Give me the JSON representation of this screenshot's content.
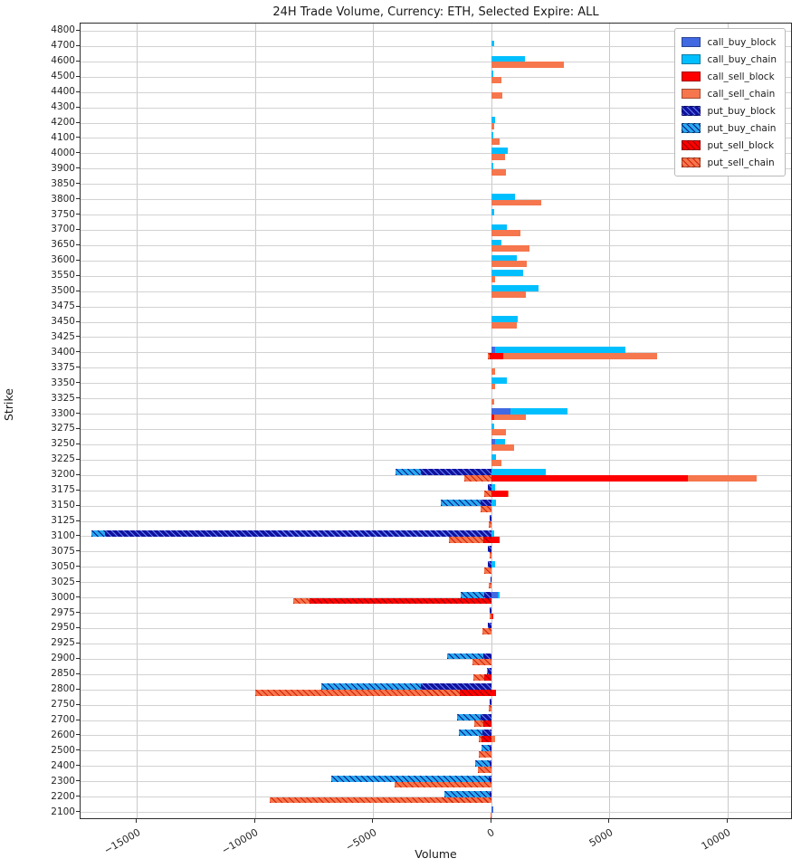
{
  "chart_data": {
    "type": "bar",
    "orientation": "horizontal",
    "title": "24H Trade Volume, Currency: ETH, Selected Expire: ALL",
    "xlabel": "Volume",
    "ylabel": "Strike",
    "grid": true,
    "legend_position": "upper right",
    "xlim": [
      -17400,
      12750
    ],
    "x_ticks": [
      -15000,
      -10000,
      -5000,
      0,
      5000,
      10000
    ],
    "x_tick_labels": [
      "−15000",
      "−10000",
      "−5000",
      "0",
      "5000",
      "10000"
    ],
    "categories": [
      "4800",
      "4700",
      "4600",
      "4500",
      "4400",
      "4300",
      "4200",
      "4100",
      "4000",
      "3900",
      "3850",
      "3800",
      "3750",
      "3700",
      "3650",
      "3600",
      "3550",
      "3500",
      "3475",
      "3450",
      "3425",
      "3400",
      "3375",
      "3350",
      "3325",
      "3300",
      "3275",
      "3250",
      "3225",
      "3200",
      "3175",
      "3150",
      "3125",
      "3100",
      "3075",
      "3050",
      "3025",
      "3000",
      "2975",
      "2950",
      "2925",
      "2900",
      "2850",
      "2800",
      "2750",
      "2700",
      "2600",
      "2500",
      "2400",
      "2300",
      "2200",
      "2100"
    ],
    "series": [
      {
        "name": "call_buy_block",
        "color": "#4169e1",
        "hatch": false,
        "subrow": "buy",
        "values": [
          0,
          0,
          0,
          0,
          0,
          0,
          0,
          0,
          0,
          0,
          0,
          0,
          0,
          0,
          0,
          0,
          0,
          0,
          0,
          0,
          0,
          150,
          0,
          0,
          0,
          800,
          0,
          150,
          0,
          0,
          0,
          0,
          0,
          0,
          0,
          0,
          0,
          250,
          0,
          0,
          0,
          0,
          0,
          0,
          0,
          0,
          0,
          0,
          0,
          0,
          0,
          60
        ]
      },
      {
        "name": "call_buy_chain",
        "color": "#00bfff",
        "hatch": false,
        "subrow": "buy",
        "values": [
          0,
          100,
          1400,
          80,
          0,
          0,
          140,
          80,
          700,
          80,
          0,
          1000,
          120,
          650,
          430,
          1050,
          1350,
          2000,
          0,
          1100,
          0,
          5650,
          0,
          650,
          0,
          3200,
          100,
          550,
          200,
          2300,
          150,
          180,
          0,
          110,
          0,
          140,
          0,
          350,
          0,
          0,
          0,
          0,
          0,
          0,
          0,
          0,
          0,
          0,
          0,
          0,
          0,
          0
        ]
      },
      {
        "name": "call_sell_block",
        "color": "#fe0000",
        "hatch": false,
        "subrow": "sell",
        "values": [
          0,
          0,
          0,
          0,
          0,
          0,
          0,
          0,
          0,
          0,
          0,
          0,
          0,
          0,
          0,
          0,
          0,
          0,
          0,
          0,
          0,
          500,
          0,
          0,
          0,
          100,
          0,
          0,
          0,
          8300,
          700,
          0,
          0,
          350,
          0,
          0,
          0,
          0,
          60,
          0,
          0,
          0,
          0,
          180,
          0,
          0,
          0,
          0,
          0,
          0,
          0,
          0
        ]
      },
      {
        "name": "call_sell_chain",
        "color": "#f6764d",
        "hatch": false,
        "subrow": "sell",
        "values": [
          0,
          0,
          3050,
          430,
          450,
          0,
          90,
          350,
          550,
          600,
          0,
          2100,
          0,
          1200,
          1600,
          1500,
          130,
          1450,
          0,
          1050,
          0,
          7000,
          130,
          150,
          100,
          1450,
          600,
          950,
          400,
          11200,
          730,
          0,
          0,
          0,
          0,
          0,
          0,
          0,
          0,
          0,
          0,
          0,
          0,
          0,
          0,
          0,
          150,
          0,
          0,
          0,
          0,
          0
        ]
      },
      {
        "name": "put_buy_block",
        "color": "#12129e",
        "hatch": true,
        "subrow": "buy",
        "values": [
          0,
          0,
          0,
          0,
          0,
          0,
          0,
          0,
          0,
          0,
          0,
          0,
          0,
          0,
          0,
          0,
          0,
          0,
          0,
          0,
          0,
          0,
          0,
          0,
          0,
          0,
          0,
          0,
          0,
          -3000,
          -150,
          -450,
          -80,
          -16350,
          -150,
          -150,
          -60,
          -300,
          -70,
          -150,
          0,
          -360,
          -150,
          -3000,
          -80,
          -460,
          -400,
          -80,
          -100,
          -140,
          -100,
          0
        ]
      },
      {
        "name": "put_buy_chain",
        "color": "#29a9f0",
        "hatch": true,
        "subrow": "buy",
        "values": [
          0,
          0,
          0,
          0,
          0,
          0,
          0,
          0,
          0,
          0,
          0,
          0,
          0,
          0,
          0,
          0,
          0,
          0,
          0,
          0,
          0,
          0,
          0,
          0,
          0,
          0,
          0,
          0,
          0,
          -4050,
          0,
          -2150,
          0,
          -16950,
          0,
          0,
          0,
          -1300,
          0,
          0,
          0,
          -1900,
          -200,
          -7200,
          0,
          -1450,
          -1400,
          -430,
          -700,
          -6800,
          -2000,
          0
        ]
      },
      {
        "name": "put_sell_block",
        "color": "#fe0000",
        "hatch": true,
        "subrow": "sell",
        "values": [
          0,
          0,
          0,
          0,
          0,
          0,
          0,
          0,
          0,
          0,
          0,
          0,
          0,
          0,
          0,
          0,
          0,
          0,
          0,
          0,
          0,
          -100,
          0,
          0,
          0,
          0,
          0,
          0,
          0,
          0,
          0,
          0,
          0,
          -370,
          0,
          0,
          0,
          -7700,
          0,
          0,
          0,
          0,
          -320,
          -1350,
          0,
          -360,
          -430,
          0,
          0,
          0,
          0,
          0
        ]
      },
      {
        "name": "put_sell_chain",
        "color": "#f6764d",
        "hatch": true,
        "subrow": "sell",
        "values": [
          0,
          0,
          0,
          0,
          0,
          0,
          0,
          0,
          0,
          0,
          0,
          0,
          0,
          0,
          0,
          0,
          0,
          0,
          0,
          0,
          0,
          -150,
          0,
          0,
          0,
          0,
          0,
          0,
          0,
          -1150,
          -300,
          -450,
          -120,
          -1800,
          -80,
          -330,
          -140,
          -8400,
          -80,
          -380,
          0,
          -800,
          -780,
          -10000,
          -120,
          -750,
          -550,
          -550,
          -600,
          -4100,
          -9400,
          -60
        ]
      }
    ]
  }
}
